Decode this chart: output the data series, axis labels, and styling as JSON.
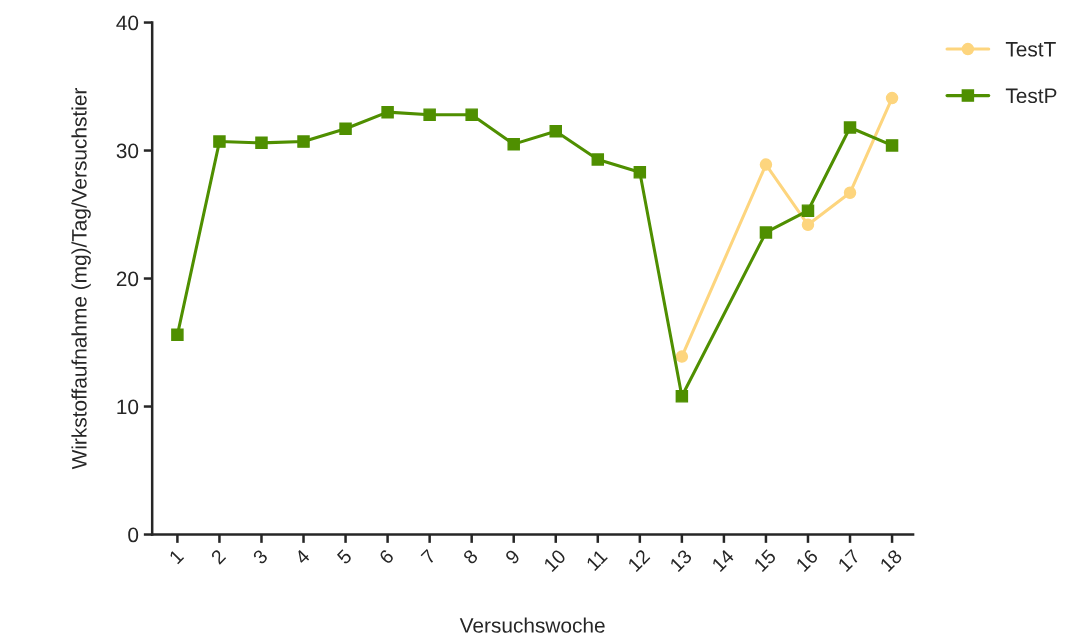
{
  "chart_data": {
    "type": "line",
    "xlabel": "Versuchswoche",
    "ylabel": "Wirkstoffaufnahme (mg)/Tag/Versuchstier",
    "categories": [
      "1",
      "2",
      "3",
      "4",
      "5",
      "6",
      "7",
      "8",
      "9",
      "10",
      "11",
      "12",
      "13",
      "14",
      "15",
      "16",
      "17",
      "18"
    ],
    "ylim": [
      0,
      40
    ],
    "yticks": [
      0,
      10,
      20,
      30,
      40
    ],
    "grid": false,
    "legend": "top right",
    "series": [
      {
        "name": "TestT",
        "color": "#fdd57e",
        "marker": "circle",
        "values": [
          null,
          null,
          null,
          null,
          null,
          null,
          null,
          null,
          null,
          null,
          null,
          null,
          13.9,
          null,
          28.9,
          24.2,
          26.7,
          34.1
        ]
      },
      {
        "name": "TestP",
        "color": "#4f8f00",
        "marker": "square",
        "values": [
          15.6,
          30.7,
          30.6,
          30.7,
          31.7,
          33.0,
          32.8,
          32.8,
          30.5,
          31.5,
          29.3,
          28.3,
          10.8,
          null,
          23.6,
          25.3,
          31.8,
          30.4
        ]
      }
    ]
  }
}
